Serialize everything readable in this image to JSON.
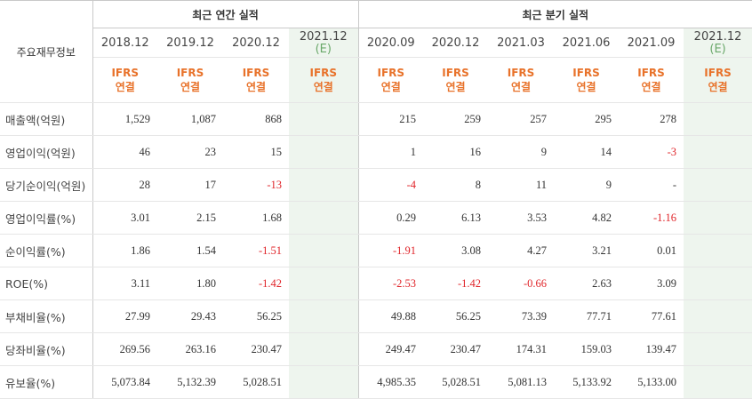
{
  "header": {
    "stub_label": "주요재무정보",
    "annual_group": "최근 연간 실적",
    "quarter_group": "최근 분기 실적",
    "annual_periods": [
      "2018.12",
      "2019.12",
      "2020.12",
      "2021.12"
    ],
    "annual_est_mark": "(E)",
    "quarter_periods": [
      "2020.09",
      "2020.12",
      "2021.03",
      "2021.06",
      "2021.09",
      "2021.12"
    ],
    "quarter_est_mark": "(E)",
    "ifrs_top": "IFRS",
    "ifrs_bottom": "연결"
  },
  "rows": [
    {
      "label": "매출액(억원)",
      "annual": [
        "1,529",
        "1,087",
        "868",
        ""
      ],
      "quarter": [
        "215",
        "259",
        "257",
        "295",
        "278",
        ""
      ]
    },
    {
      "label": "영업이익(억원)",
      "annual": [
        "46",
        "23",
        "15",
        ""
      ],
      "quarter": [
        "1",
        "16",
        "9",
        "14",
        "-3",
        ""
      ]
    },
    {
      "label": "당기순이익(억원)",
      "annual": [
        "28",
        "17",
        "-13",
        ""
      ],
      "quarter": [
        "-4",
        "8",
        "11",
        "9",
        "-",
        ""
      ]
    },
    {
      "label": "영업이익률(%)",
      "annual": [
        "3.01",
        "2.15",
        "1.68",
        ""
      ],
      "quarter": [
        "0.29",
        "6.13",
        "3.53",
        "4.82",
        "-1.16",
        ""
      ]
    },
    {
      "label": "순이익률(%)",
      "annual": [
        "1.86",
        "1.54",
        "-1.51",
        ""
      ],
      "quarter": [
        "-1.91",
        "3.08",
        "4.27",
        "3.21",
        "0.01",
        ""
      ]
    },
    {
      "label": "ROE(%)",
      "annual": [
        "3.11",
        "1.80",
        "-1.42",
        ""
      ],
      "quarter": [
        "-2.53",
        "-1.42",
        "-0.66",
        "2.63",
        "3.09",
        ""
      ]
    },
    {
      "label": "부채비율(%)",
      "annual": [
        "27.99",
        "29.43",
        "56.25",
        ""
      ],
      "quarter": [
        "49.88",
        "56.25",
        "73.39",
        "77.71",
        "77.61",
        ""
      ]
    },
    {
      "label": "당좌비율(%)",
      "annual": [
        "269.56",
        "263.16",
        "230.47",
        ""
      ],
      "quarter": [
        "249.47",
        "230.47",
        "174.31",
        "159.03",
        "139.47",
        ""
      ]
    },
    {
      "label": "유보율(%)",
      "annual": [
        "5,073.84",
        "5,132.39",
        "5,028.51",
        ""
      ],
      "quarter": [
        "4,985.35",
        "5,028.51",
        "5,081.13",
        "5,133.92",
        "5,133.00",
        ""
      ]
    }
  ],
  "colors": {
    "ifrs": "#e8722a",
    "negative": "#e0252a",
    "estimate_bg": "#eef5ee",
    "estimate_text": "#6aa86a"
  }
}
